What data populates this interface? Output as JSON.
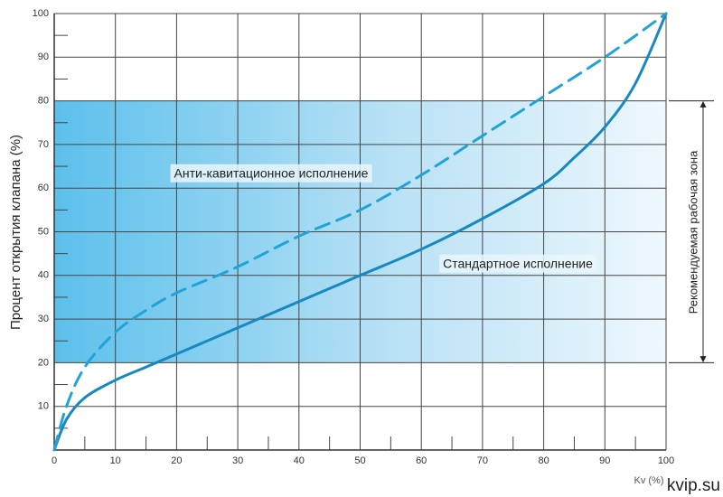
{
  "chart_data": {
    "type": "line",
    "y_label": "Процент открытия клапана (%)",
    "x_label": "Kv (%)",
    "zone_label": "Рекомендуемая рабочая зона",
    "zone": [
      20,
      80
    ],
    "watermark": "kvip.su",
    "xlim": [
      0,
      100
    ],
    "ylim": [
      0,
      100
    ],
    "xticks": [
      0,
      10,
      20,
      30,
      40,
      50,
      60,
      70,
      80,
      90,
      100
    ],
    "yticks": [
      10,
      20,
      30,
      40,
      50,
      60,
      70,
      80,
      90,
      100
    ],
    "xminorticks": [
      5,
      15,
      25,
      35,
      45,
      55,
      65,
      75,
      85,
      95
    ],
    "yminorticks": [
      5,
      15,
      25,
      35,
      45,
      55,
      65,
      75,
      85,
      95
    ],
    "grid": true,
    "series": [
      {
        "name": "Стандартное исполнение",
        "color": "#1888c0",
        "dash": false,
        "x": [
          0,
          2,
          5,
          10,
          15,
          20,
          30,
          40,
          50,
          60,
          70,
          80,
          85,
          90,
          95,
          100
        ],
        "values": [
          0,
          7,
          12,
          16,
          19,
          22,
          28,
          34,
          40,
          46,
          53,
          61,
          67,
          74,
          84,
          100
        ]
      },
      {
        "name": "Анти-кавитационное исполнение",
        "color": "#22a3d6",
        "dash": true,
        "x": [
          0,
          2,
          5,
          10,
          15,
          20,
          30,
          40,
          50,
          60,
          70,
          80,
          90,
          100
        ],
        "values": [
          0,
          10,
          19,
          27,
          32,
          36,
          42,
          49,
          55,
          63,
          72,
          81,
          90,
          100
        ]
      }
    ]
  }
}
